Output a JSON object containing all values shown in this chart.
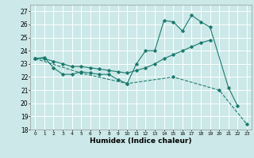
{
  "title": "",
  "xlabel": "Humidex (Indice chaleur)",
  "bg_color": "#cce8e8",
  "grid_color": "#ffffff",
  "line_color": "#1a7a6e",
  "xlim": [
    -0.5,
    23.5
  ],
  "ylim": [
    18,
    27.5
  ],
  "yticks": [
    18,
    19,
    20,
    21,
    22,
    23,
    24,
    25,
    26,
    27
  ],
  "xticks": [
    0,
    1,
    2,
    3,
    4,
    5,
    6,
    7,
    8,
    9,
    10,
    11,
    12,
    13,
    14,
    15,
    16,
    17,
    18,
    19,
    20,
    21,
    22,
    23
  ],
  "series1_x": [
    0,
    1,
    2,
    3,
    4,
    5,
    6,
    7,
    8,
    9,
    10,
    11,
    12,
    13,
    14,
    15,
    16,
    17,
    18,
    19,
    21,
    22
  ],
  "series1_y": [
    23.4,
    23.5,
    22.7,
    22.2,
    22.2,
    22.4,
    22.3,
    22.2,
    22.2,
    21.8,
    21.5,
    23.0,
    24.0,
    24.0,
    26.3,
    26.2,
    25.5,
    26.7,
    26.2,
    25.8,
    21.2,
    19.8
  ],
  "series2_x": [
    0,
    1,
    2,
    3,
    4,
    5,
    6,
    7,
    8,
    9,
    10,
    11,
    12,
    13,
    14,
    15,
    16,
    17,
    18,
    19
  ],
  "series2_y": [
    23.4,
    23.4,
    23.2,
    23.0,
    22.8,
    22.8,
    22.7,
    22.6,
    22.5,
    22.4,
    22.3,
    22.5,
    22.7,
    23.0,
    23.4,
    23.7,
    24.0,
    24.3,
    24.6,
    24.8
  ],
  "series3_x": [
    0,
    5,
    10,
    15,
    20,
    23
  ],
  "series3_y": [
    23.4,
    22.3,
    21.5,
    22.0,
    21.0,
    18.4
  ]
}
